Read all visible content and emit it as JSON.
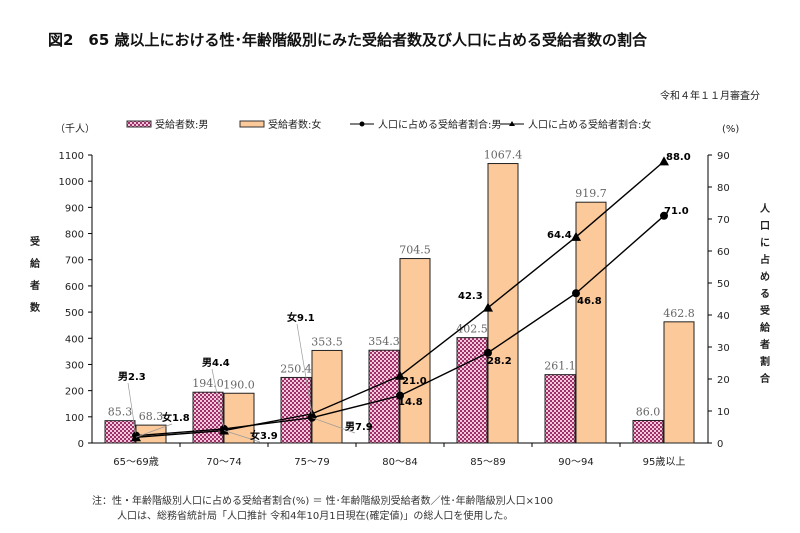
{
  "chart_data": {
    "type": "bar+line",
    "title": "図2　65 歳以上における性･年齢階級別にみた受給者数及び人口に占める受給者数の割合",
    "subtitle": "令和４年１１月審査分",
    "categories": [
      "65～69歳",
      "70～74",
      "75～79",
      "80～84",
      "85～89",
      "90～94",
      "95歳以上"
    ],
    "y_left": {
      "label": "受給者数",
      "unit": "（千人）",
      "range": [
        0,
        1100
      ],
      "ticks": [
        0,
        100,
        200,
        300,
        400,
        500,
        600,
        700,
        800,
        900,
        1000,
        1100
      ]
    },
    "y_right": {
      "label": "人口に占める受給者割合",
      "unit": "(%)",
      "range": [
        0,
        90
      ],
      "ticks": [
        0,
        10,
        20,
        30,
        40,
        50,
        60,
        70,
        80,
        90
      ]
    },
    "series": [
      {
        "name": "受給者数:男",
        "type": "bar",
        "axis": "left",
        "values": [
          85.3,
          194.0,
          250.4,
          354.3,
          402.5,
          261.1,
          86.0
        ],
        "color": "#a0306a"
      },
      {
        "name": "受給者数:女",
        "type": "bar",
        "axis": "left",
        "values": [
          68.3,
          190.0,
          353.5,
          704.5,
          1067.4,
          919.7,
          462.8
        ],
        "color": "#fcc99a"
      },
      {
        "name": "人口に占める受給者割合:男",
        "type": "line",
        "axis": "right",
        "marker": "circle",
        "values": [
          2.3,
          4.4,
          7.9,
          14.8,
          28.2,
          46.8,
          71.0
        ],
        "labels": [
          "男2.3",
          "男4.4",
          "男7.9",
          "14.8",
          "28.2",
          "46.8",
          "71.0"
        ],
        "color": "#000000"
      },
      {
        "name": "人口に占める受給者割合:女",
        "type": "line",
        "axis": "right",
        "marker": "triangle",
        "values": [
          1.8,
          3.9,
          9.1,
          21.0,
          42.3,
          64.4,
          88.0
        ],
        "labels": [
          "女1.8",
          "女3.9",
          "女9.1",
          "21.0",
          "42.3",
          "64.4",
          "88.0"
        ],
        "color": "#000000"
      }
    ],
    "legend": "top",
    "grid": false,
    "notes": [
      "注：性・年齢階級別人口に占める受給者割合(%) ＝ 性･年齢階級別受給者数／性･年齢階級別人口×100",
      "人口は、総務省統計局「人口推計 令和4年10月1日現在(確定値)」の総人口を使用した。"
    ]
  }
}
